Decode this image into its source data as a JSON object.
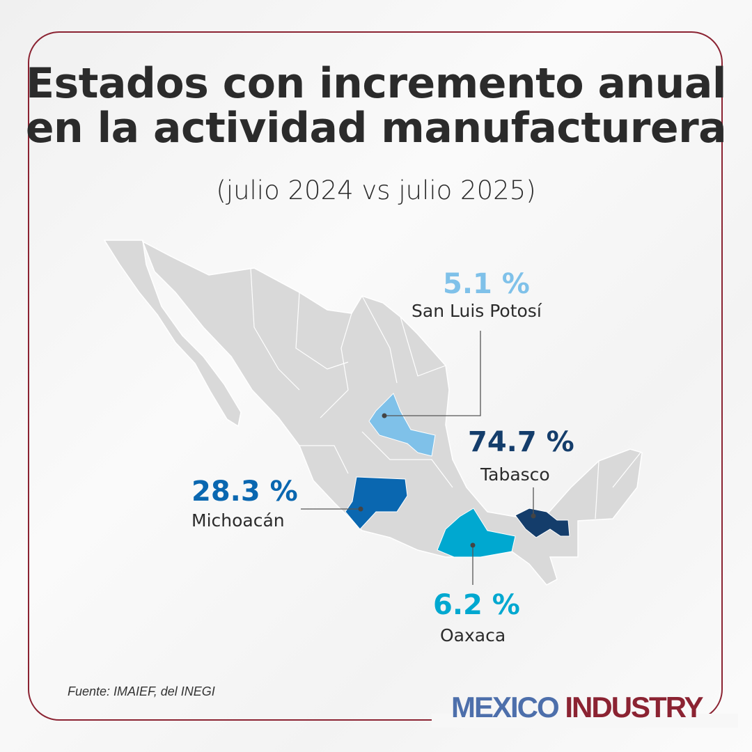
{
  "title_line1": "Estados con incremento anual",
  "title_line2": "en la actividad manufacturera",
  "subtitle": "(julio 2024 vs julio 2025)",
  "states": [
    {
      "name": "San Luis Potosí",
      "value": "5.1 %",
      "color": "#7fc1e9"
    },
    {
      "name": "Tabasco",
      "value": "74.7 %",
      "color": "#143d6b"
    },
    {
      "name": "Michoacán",
      "value": "28.3 %",
      "color": "#0a67b0"
    },
    {
      "name": "Oaxaca",
      "value": "6.2 %",
      "color": "#00a8d0"
    }
  ],
  "source": "Fuente: IMAIEF, del INEGI",
  "logo": {
    "part1": "MEXICO",
    "part2": "INDUSTRY",
    "color1": "#4d6fab",
    "color2": "#8b2332"
  }
}
